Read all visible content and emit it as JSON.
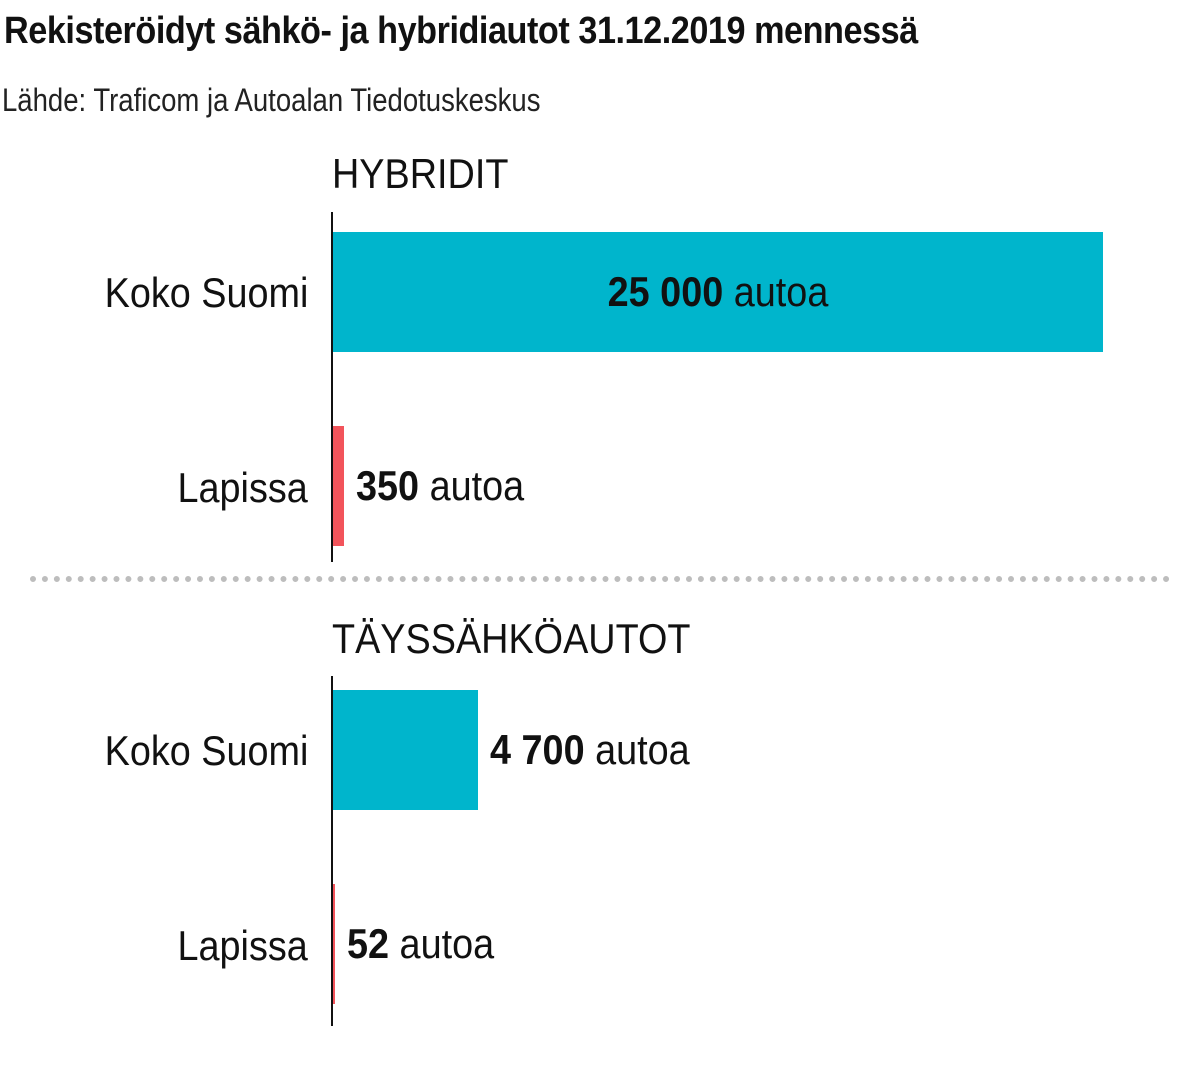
{
  "title": "Rekisteröidyt sähkö- ja hybridiautot 31.12.2019 mennessä",
  "source": "Lähde: Traficom ja Autoalan Tiedotuskeskus",
  "colors": {
    "koko_suomi": "#00B5CC",
    "lapissa": "#F2545B"
  },
  "chart_data": [
    {
      "type": "bar",
      "orientation": "horizontal",
      "title": "HYBRIDIT",
      "categories": [
        "Koko Suomi",
        "Lapissa"
      ],
      "values": [
        25000,
        350
      ],
      "value_labels": [
        {
          "number": "25 000",
          "unit": "autoa"
        },
        {
          "number": "350",
          "unit": "autoa"
        }
      ],
      "xlim": [
        0,
        25000
      ],
      "grid": false
    },
    {
      "type": "bar",
      "orientation": "horizontal",
      "title": "TÄYSSÄHKÖAUTOT",
      "categories": [
        "Koko Suomi",
        "Lapissa"
      ],
      "values": [
        4700,
        52
      ],
      "value_labels": [
        {
          "number": "4 700",
          "unit": "autoa"
        },
        {
          "number": "52",
          "unit": "autoa"
        }
      ],
      "xlim": [
        0,
        25000
      ],
      "grid": false
    }
  ]
}
